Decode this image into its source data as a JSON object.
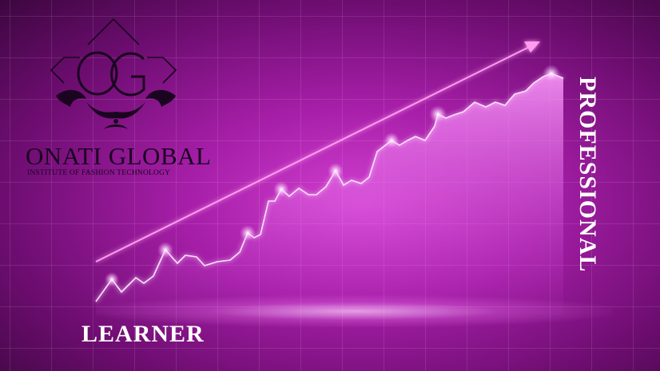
{
  "logo": {
    "monogram": "OG",
    "brand_name": "ONATI GLOBAL",
    "tagline": "INSTITUTE OF FASHION TECHNOLOGY"
  },
  "labels": {
    "start": "LEARNER",
    "end": "PROFESSIONAL"
  },
  "colors": {
    "background": "#a51ea7",
    "logo_ink": "#1a0420",
    "label_text": "#ffffff",
    "line_glow": "#ffd6ff"
  },
  "icons": [
    "og-monogram-logo",
    "trend-arrow-icon"
  ]
}
